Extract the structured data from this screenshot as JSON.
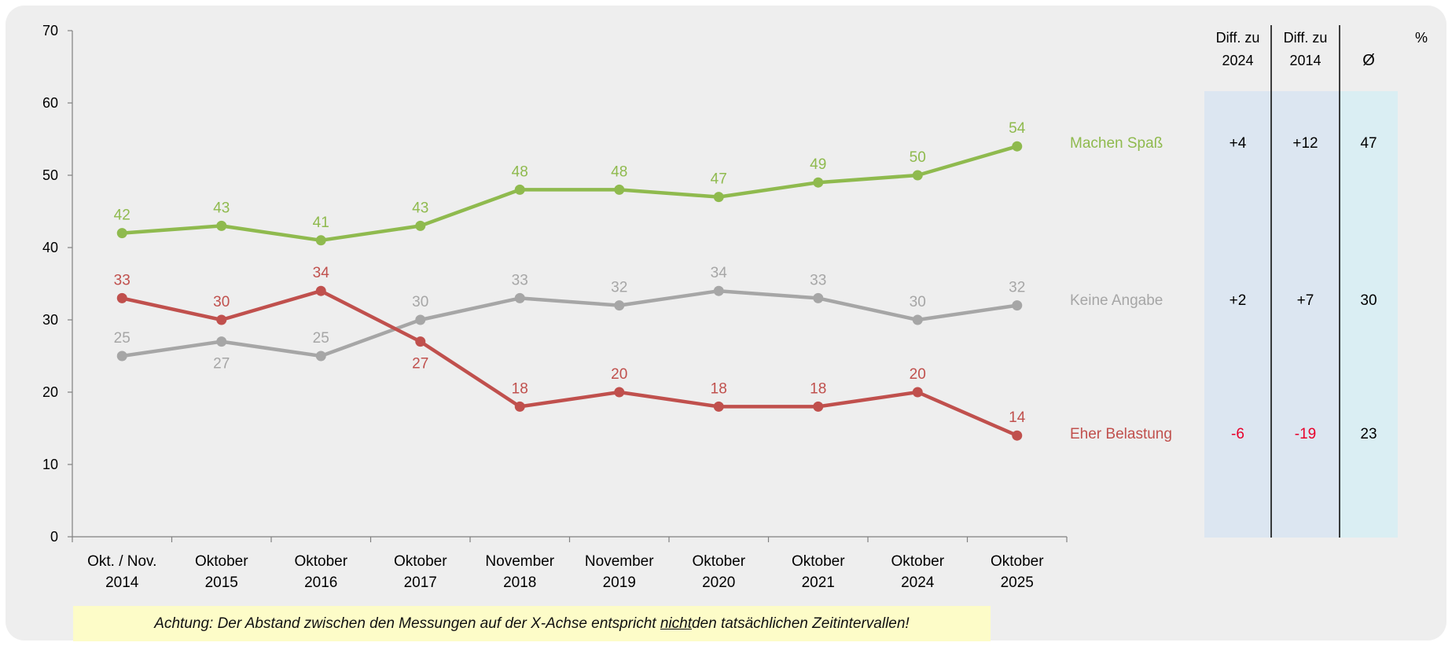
{
  "chart_data": {
    "type": "line",
    "unit": "%",
    "ylim": [
      0,
      70
    ],
    "yticks": [
      0,
      10,
      20,
      30,
      40,
      50,
      60,
      70
    ],
    "categories": [
      [
        "Okt. / Nov.",
        "2014"
      ],
      [
        "Oktober",
        "2015"
      ],
      [
        "Oktober",
        "2016"
      ],
      [
        "Oktober",
        "2017"
      ],
      [
        "November",
        "2018"
      ],
      [
        "November",
        "2019"
      ],
      [
        "Oktober",
        "2020"
      ],
      [
        "Oktober",
        "2021"
      ],
      [
        "Oktober",
        "2024"
      ],
      [
        "Oktober",
        "2025"
      ]
    ],
    "series": [
      {
        "name": "Machen Spaß",
        "color": "#8fba4e",
        "values": [
          42,
          43,
          41,
          43,
          48,
          48,
          47,
          49,
          50,
          54
        ],
        "label_pos": [
          "above",
          "above",
          "above",
          "above",
          "above",
          "above",
          "above",
          "above",
          "above",
          "above"
        ],
        "diff_2024": "+4",
        "diff_2014": "+12",
        "avg": "47",
        "diff_color": "#000000"
      },
      {
        "name": "Keine Angabe",
        "color": "#a6a6a6",
        "values": [
          25,
          27,
          25,
          30,
          33,
          32,
          34,
          33,
          30,
          32
        ],
        "label_pos": [
          "above",
          "below",
          "above",
          "above",
          "above",
          "above",
          "above",
          "above",
          "above",
          "above"
        ],
        "diff_2024": "+2",
        "diff_2014": "+7",
        "avg": "30",
        "diff_color": "#000000"
      },
      {
        "name": "Eher Belastung",
        "color": "#c0504d",
        "values": [
          33,
          30,
          34,
          27,
          18,
          20,
          18,
          18,
          20,
          14
        ],
        "label_pos": [
          "above",
          "above",
          "above",
          "below",
          "above",
          "above",
          "above",
          "above",
          "above",
          "above"
        ],
        "diff_2024": "-6",
        "diff_2014": "-19",
        "avg": "23",
        "diff_color": "#e8002a"
      }
    ],
    "table_headers": [
      [
        "Diff. zu",
        "2024"
      ],
      [
        "Diff. zu",
        "2014"
      ],
      [
        "Ø"
      ]
    ]
  },
  "note": {
    "before": "Achtung: Der Abstand zwischen den Messungen auf der X-Achse entspricht ",
    "underlined": "nicht",
    "after": " den tatsächlichen Zeitintervallen!"
  }
}
